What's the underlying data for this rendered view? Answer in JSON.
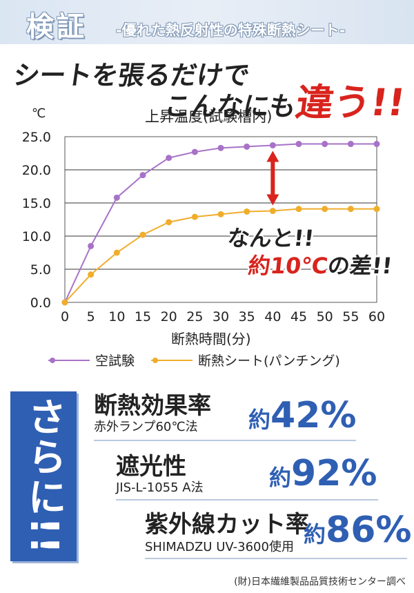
{
  "header": {
    "title": "検証",
    "subtitle": "-優れた熱反射性の特殊断熱シート-"
  },
  "headline": {
    "line1": "シートを張るだけで",
    "line2_prefix": "こんなにも",
    "line2_accent": "違う!!"
  },
  "chart_data": {
    "type": "line",
    "title": "上昇温度(試験槽内)",
    "yunit": "℃",
    "xlabel": "断熱時間(分)",
    "ylabel": "",
    "x": [
      0,
      5,
      10,
      15,
      20,
      25,
      30,
      35,
      40,
      45,
      50,
      55,
      60
    ],
    "xlim": [
      0,
      60
    ],
    "ylim": [
      0,
      25
    ],
    "yticks": [
      "0.0",
      "5.0",
      "10.0",
      "15.0",
      "20.0",
      "25.0"
    ],
    "xticks": [
      "0",
      "5",
      "10",
      "15",
      "20",
      "25",
      "30",
      "35",
      "40",
      "45",
      "50",
      "55",
      "60"
    ],
    "grid": "horizontal",
    "legend_position": "bottom",
    "series": [
      {
        "name": "空試験",
        "color": "#a772c8",
        "values": [
          0.0,
          8.5,
          15.8,
          19.2,
          21.8,
          22.7,
          23.3,
          23.5,
          23.7,
          23.9,
          23.9,
          23.9,
          23.9
        ]
      },
      {
        "name": "断熱シート(パンチング)",
        "color": "#f0ad2c",
        "values": [
          0.0,
          4.2,
          7.5,
          10.2,
          12.1,
          12.9,
          13.3,
          13.7,
          13.8,
          14.1,
          14.1,
          14.1,
          14.1
        ]
      }
    ],
    "annotation_arrow_x": 40,
    "annotation_color": "#d8241d"
  },
  "callout": {
    "line1": "なんと!!",
    "line2_accent": "約10℃",
    "line2_suffix": "の差!!"
  },
  "sarani": "さらに!!",
  "stats": [
    {
      "title": "断熱効果率",
      "method": "赤外ランプ60℃法",
      "prefix": "約",
      "value": "42%"
    },
    {
      "title": "遮光性",
      "method": "JIS-L-1055 A法",
      "prefix": "約",
      "value": "92%"
    },
    {
      "title": "紫外線カット率",
      "method": "SHIMADZU UV-3600使用",
      "prefix": "約",
      "value": "86%"
    }
  ],
  "footnote": "(財)日本繊維製品品質技術センター調べ"
}
